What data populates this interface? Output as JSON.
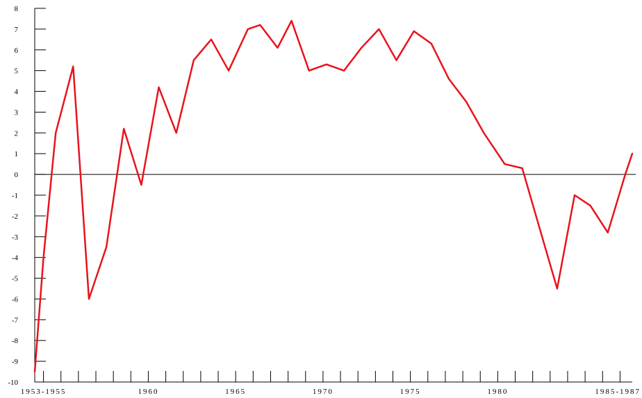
{
  "chart_data": {
    "type": "line",
    "title": "",
    "xlabel": "",
    "ylabel": "",
    "ylim": [
      -10,
      8
    ],
    "yticks": [
      -10,
      -9,
      -8,
      -7,
      -6,
      -5,
      -4,
      -3,
      -2,
      -1,
      0,
      1,
      2,
      3,
      4,
      5,
      6,
      7,
      8
    ],
    "xlim": [
      1953.5,
      1987.7
    ],
    "x_tick_labels": [
      {
        "x": 1954,
        "label": "1953-1955"
      },
      {
        "x": 1960,
        "label": "1960"
      },
      {
        "x": 1965,
        "label": "1965"
      },
      {
        "x": 1970,
        "label": "1970"
      },
      {
        "x": 1975,
        "label": "1975"
      },
      {
        "x": 1980,
        "label": "1980"
      },
      {
        "x": 1986,
        "label": "1985-1987"
      }
    ],
    "x_minor_ticks": [
      1954,
      1955,
      1956,
      1957,
      1958,
      1959,
      1960,
      1961,
      1962,
      1963,
      1964,
      1965,
      1966,
      1967,
      1968,
      1969,
      1970,
      1971,
      1972,
      1973,
      1974,
      1975,
      1976,
      1977,
      1978,
      1979,
      1980,
      1981,
      1982,
      1983,
      1984,
      1985,
      1986,
      1987
    ],
    "grid": false,
    "zero_line": true,
    "series": [
      {
        "color": "#e8131b",
        "x": [
          1953.5,
          1954.0,
          1954.7,
          1955.7,
          1956.6,
          1957.6,
          1958.6,
          1959.6,
          1960.6,
          1961.6,
          1962.6,
          1963.6,
          1964.6,
          1965.7,
          1966.4,
          1967.4,
          1968.2,
          1969.2,
          1970.2,
          1971.2,
          1972.2,
          1973.2,
          1974.2,
          1975.2,
          1976.2,
          1977.2,
          1978.2,
          1979.2,
          1980.4,
          1981.4,
          1982.4,
          1983.4,
          1984.4,
          1985.3,
          1986.3,
          1987.3,
          1987.7
        ],
        "y": [
          -9.5,
          -4.0,
          2.0,
          5.2,
          -6.0,
          -3.5,
          2.2,
          -0.5,
          4.2,
          2.0,
          5.5,
          6.5,
          5.0,
          7.0,
          7.2,
          6.1,
          7.4,
          5.0,
          5.3,
          5.0,
          6.1,
          7.0,
          5.5,
          6.9,
          6.3,
          4.6,
          3.5,
          2.0,
          0.5,
          0.3,
          -2.6,
          -5.5,
          -1.0,
          -1.5,
          -2.8,
          0.0,
          1.0
        ]
      }
    ]
  }
}
